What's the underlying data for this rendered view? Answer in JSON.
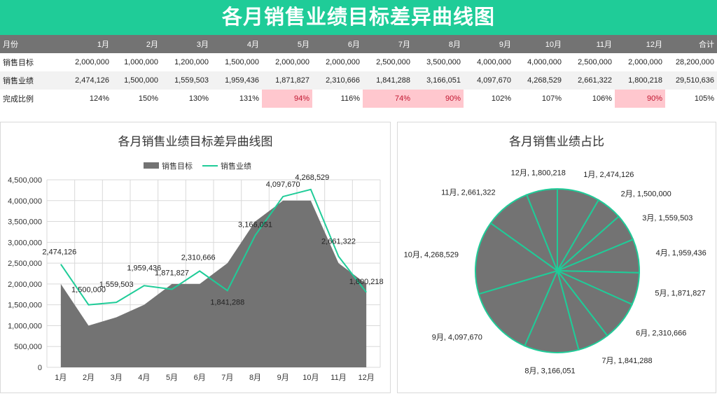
{
  "page_title": "各月销售业绩目标差异曲线图",
  "table": {
    "header": [
      "月份",
      "1月",
      "2月",
      "3月",
      "4月",
      "5月",
      "6月",
      "7月",
      "8月",
      "9月",
      "10月",
      "11月",
      "12月",
      "合计"
    ],
    "rows": [
      {
        "label": "销售目标",
        "cells": [
          "2,000,000",
          "1,000,000",
          "1,200,000",
          "1,500,000",
          "2,000,000",
          "2,000,000",
          "2,500,000",
          "3,500,000",
          "4,000,000",
          "4,000,000",
          "2,500,000",
          "2,000,000",
          "28,200,000"
        ]
      },
      {
        "label": "销售业绩",
        "cells": [
          "2,474,126",
          "1,500,000",
          "1,559,503",
          "1,959,436",
          "1,871,827",
          "2,310,666",
          "1,841,288",
          "3,166,051",
          "4,097,670",
          "4,268,529",
          "2,661,322",
          "1,800,218",
          "29,510,636"
        ]
      },
      {
        "label": "完成比例",
        "cells": [
          "124%",
          "150%",
          "130%",
          "131%",
          "94%",
          "116%",
          "74%",
          "90%",
          "102%",
          "107%",
          "106%",
          "90%",
          "105%"
        ]
      }
    ]
  },
  "colors": {
    "accent": "#1fcc98",
    "area": "#737373",
    "header": "#737373",
    "warn_bg": "#ffc7ce",
    "warn_text": "#c0152f",
    "line": "#1fcc98"
  },
  "chart_data": [
    {
      "type": "area",
      "title": "各月销售业绩目标差异曲线图",
      "categories": [
        "1月",
        "2月",
        "3月",
        "4月",
        "5月",
        "6月",
        "7月",
        "8月",
        "9月",
        "10月",
        "11月",
        "12月"
      ],
      "series": [
        {
          "name": "销售目标",
          "type": "area",
          "values": [
            2000000,
            1000000,
            1200000,
            1500000,
            2000000,
            2000000,
            2500000,
            3500000,
            4000000,
            4000000,
            2500000,
            2000000
          ]
        },
        {
          "name": "销售业绩",
          "type": "line",
          "values": [
            2474126,
            1500000,
            1559503,
            1959436,
            1871827,
            2310666,
            1841288,
            3166051,
            4097670,
            4268529,
            2661322,
            1800218
          ],
          "data_labels": [
            "2,474,126",
            "1,500,000",
            "1,559,503",
            "1,959,436",
            "1,871,827",
            "2,310,666",
            "1,841,288",
            "3,166,051",
            "4,097,670",
            "4,268,529",
            "2,661,322",
            "1,800,218"
          ]
        }
      ],
      "ylim": [
        0,
        4500000
      ],
      "yticks": [
        "0",
        "500,000",
        "1,000,000",
        "1,500,000",
        "2,000,000",
        "2,500,000",
        "3,000,000",
        "3,500,000",
        "4,000,000",
        "4,500,000"
      ],
      "grid": true,
      "legend": "top"
    },
    {
      "type": "pie",
      "title": "各月销售业绩占比",
      "labels": [
        "1月",
        "2月",
        "3月",
        "4月",
        "5月",
        "6月",
        "7月",
        "8月",
        "9月",
        "10月",
        "11月",
        "12月"
      ],
      "values": [
        2474126,
        1500000,
        1559503,
        1959436,
        1871827,
        2310666,
        1841288,
        3166051,
        4097670,
        4268529,
        2661322,
        1800218
      ],
      "data_labels": [
        "1月, 2,474,126",
        "2月, 1,500,000",
        "3月, 1,559,503",
        "4月, 1,959,436",
        "5月, 1,871,827",
        "6月, 2,310,666",
        "7月, 1,841,288",
        "8月, 3,166,051",
        "9月, 4,097,670",
        "10月, 4,268,529",
        "11月, 2,661,322",
        "12月, 1,800,218"
      ]
    }
  ]
}
